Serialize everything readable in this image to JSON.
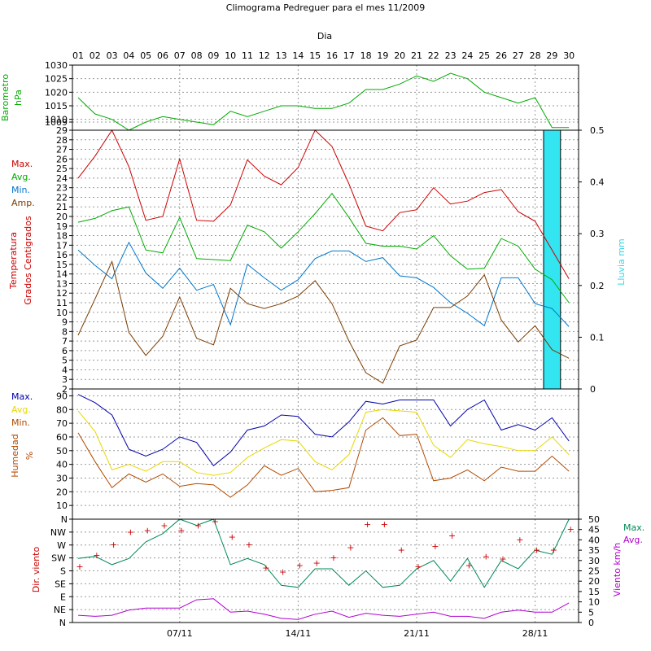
{
  "title": "Climograma Pedreguer para el mes 11/2009",
  "top_axis_label": "Dia",
  "days": [
    "01",
    "02",
    "03",
    "04",
    "05",
    "06",
    "07",
    "08",
    "09",
    "10",
    "11",
    "12",
    "13",
    "14",
    "15",
    "16",
    "17",
    "18",
    "19",
    "20",
    "21",
    "22",
    "23",
    "24",
    "25",
    "26",
    "27",
    "28",
    "29",
    "30"
  ],
  "date_labels": [
    {
      "day": 7,
      "text": "07/11"
    },
    {
      "day": 14,
      "text": "14/11"
    },
    {
      "day": 21,
      "text": "21/11"
    },
    {
      "day": 28,
      "text": "28/11"
    }
  ],
  "chart_data": [
    {
      "type": "line",
      "ylabel": [
        "Barometro",
        "hPa"
      ],
      "ylim": [
        1006,
        1030
      ],
      "ticks": [
        1009,
        1010,
        1015,
        1020,
        1025,
        1030
      ],
      "color": "#00aa00",
      "series": [
        {
          "color": "#00aa00",
          "values": [
            1018,
            1012,
            1010,
            1006,
            1009,
            1011,
            1010,
            1009,
            1008,
            1013,
            1011,
            1013,
            1015,
            1015,
            1014,
            1014,
            1016,
            1021,
            1021,
            1023,
            1026,
            1024,
            1027,
            1025,
            1020,
            1018,
            1016,
            1018,
            1007,
            1007
          ]
        }
      ]
    },
    {
      "type": "line",
      "ylabel": [
        "Temperatura",
        "Grados Centigrados"
      ],
      "ylim": [
        2,
        29
      ],
      "ticks": [
        2,
        3,
        4,
        5,
        6,
        7,
        8,
        9,
        10,
        11,
        12,
        13,
        14,
        15,
        16,
        17,
        18,
        19,
        20,
        21,
        22,
        23,
        24,
        25,
        26,
        27,
        28,
        29
      ],
      "y2label": "Lluvia mm",
      "y2lim": [
        0,
        0.5
      ],
      "y2ticks": [
        "0",
        "0.1",
        "0.2",
        "0.3",
        "0.4",
        "0.5"
      ],
      "legend": [
        {
          "label": "Max.",
          "color": "#cc0000"
        },
        {
          "label": "Avg.",
          "color": "#00aa00"
        },
        {
          "label": "Min.",
          "color": "#0077cc"
        },
        {
          "label": "Amp.",
          "color": "#7a3c00"
        }
      ],
      "series": [
        {
          "name": "Max.",
          "color": "#cc0000",
          "values": [
            24.0,
            26.3,
            29.0,
            25.2,
            19.6,
            20.0,
            26.0,
            19.6,
            19.5,
            21.2,
            25.9,
            24.2,
            23.3,
            25.1,
            29.0,
            27.3,
            23.4,
            19.0,
            18.5,
            20.4,
            20.7,
            23.0,
            21.3,
            21.6,
            22.5,
            22.8,
            20.5,
            19.5,
            16.5,
            13.5
          ]
        },
        {
          "name": "Avg.",
          "color": "#00aa00",
          "values": [
            19.4,
            19.8,
            20.6,
            21.0,
            16.5,
            16.2,
            19.9,
            15.6,
            15.5,
            15.4,
            19.1,
            18.4,
            16.7,
            18.4,
            20.3,
            22.4,
            19.9,
            17.2,
            16.9,
            16.9,
            16.6,
            18.0,
            15.9,
            14.5,
            14.6,
            17.7,
            16.9,
            14.5,
            13.4,
            11.0
          ]
        },
        {
          "name": "Min.",
          "color": "#0077cc",
          "values": [
            16.5,
            14.9,
            13.5,
            17.3,
            14.1,
            12.5,
            14.6,
            12.3,
            12.9,
            8.7,
            15.0,
            13.6,
            12.3,
            13.4,
            15.6,
            16.4,
            16.4,
            15.3,
            15.7,
            13.8,
            13.6,
            12.6,
            11.0,
            9.9,
            8.6,
            13.6,
            13.6,
            10.9,
            10.4,
            8.5
          ]
        },
        {
          "name": "Amp.",
          "color": "#7a3c00",
          "values": [
            7.6,
            11.4,
            15.3,
            7.9,
            5.5,
            7.5,
            11.6,
            7.3,
            6.6,
            12.5,
            10.9,
            10.4,
            10.9,
            11.7,
            13.3,
            10.9,
            7.0,
            3.7,
            2.6,
            6.5,
            7.1,
            10.5,
            10.5,
            11.7,
            13.9,
            9.2,
            6.9,
            8.6,
            6.1,
            5.2
          ]
        }
      ],
      "rain": {
        "label": "Lluvia mm",
        "color": "#33e5f0",
        "values": [
          0,
          0,
          0,
          0,
          0,
          0,
          0,
          0,
          0,
          0,
          0,
          0,
          0,
          0,
          0,
          0,
          0,
          0,
          0,
          0,
          0,
          0,
          0,
          0,
          0,
          0,
          0,
          0,
          0.5,
          0
        ]
      }
    },
    {
      "type": "line",
      "ylabel": [
        "Humedad",
        "%"
      ],
      "ylim": [
        0,
        95
      ],
      "ticks": [
        "N",
        "10",
        "20",
        "30",
        "40",
        "50",
        "60",
        "70",
        "80",
        "90"
      ],
      "legend": [
        {
          "label": "Max.",
          "color": "#0000aa"
        },
        {
          "label": "Avg.",
          "color": "#e6d800"
        },
        {
          "label": "Min.",
          "color": "#b24a00"
        }
      ],
      "series": [
        {
          "name": "Max.",
          "color": "#0000aa",
          "values": [
            91,
            85,
            76,
            51,
            46,
            51,
            60,
            56,
            39,
            49,
            65,
            68,
            76,
            75,
            62,
            60,
            71,
            86,
            84,
            87,
            87,
            87,
            68,
            80,
            87,
            65,
            69,
            65,
            74,
            57
          ]
        },
        {
          "name": "Avg.",
          "color": "#e6d800",
          "values": [
            79,
            64,
            36,
            40,
            35,
            42,
            42,
            34,
            32,
            34,
            45,
            52,
            58,
            57,
            42,
            36,
            47,
            78,
            80,
            79,
            78,
            54,
            45,
            58,
            55,
            53,
            50,
            50,
            60,
            47
          ]
        },
        {
          "name": "Min.",
          "color": "#b24a00",
          "values": [
            63,
            42,
            23,
            33,
            27,
            33,
            24,
            26,
            25,
            16,
            25,
            39,
            32,
            37,
            20,
            21,
            23,
            65,
            74,
            61,
            62,
            28,
            30,
            36,
            28,
            38,
            35,
            35,
            46,
            35
          ]
        }
      ]
    },
    {
      "type": "line",
      "ylabel": "Dir. viento",
      "dir_ticks": [
        "N",
        "NE",
        "E",
        "SE",
        "S",
        "SW",
        "W",
        "NW"
      ],
      "y2label": "Viento km/h",
      "y2lim": [
        0,
        50
      ],
      "y2ticks": [
        "0",
        "5",
        "10",
        "15",
        "20",
        "25",
        "30",
        "35",
        "40",
        "45",
        "50"
      ],
      "legend": [
        {
          "label": "Max.",
          "color": "#008855"
        },
        {
          "label": "Avg.",
          "color": "#b000d0"
        }
      ],
      "direction_marker_color": "#cc0000",
      "direction_values": [
        4.4,
        5.3,
        6.1,
        7.1,
        7.2,
        7.6,
        7.2,
        7.6,
        7.9,
        6.7,
        6.1,
        4.3,
        4.0,
        4.5,
        4.7,
        5.1,
        5.9,
        7.7,
        7.7,
        5.7,
        4.4,
        6.0,
        6.8,
        4.5,
        5.2,
        5.0,
        6.5,
        5.7,
        5.7,
        7.3
      ],
      "series": [
        {
          "name": "Max.",
          "color": "#008855",
          "values": [
            31,
            32,
            28,
            31,
            39,
            43,
            50,
            47,
            50,
            28,
            31,
            28,
            18,
            17,
            26,
            26,
            18,
            25,
            17,
            18,
            26,
            30,
            20,
            31,
            17,
            30,
            26,
            35,
            33,
            50
          ]
        },
        {
          "name": "Avg.",
          "color": "#b000d0",
          "values": [
            3.5,
            3,
            3.5,
            6,
            7,
            7,
            7,
            11,
            11.5,
            5,
            5.5,
            4,
            2,
            1.5,
            4,
            5.5,
            2.5,
            4.5,
            3.5,
            3,
            4,
            5,
            3,
            3,
            2,
            5,
            6,
            5,
            5,
            9.5
          ]
        }
      ]
    }
  ]
}
